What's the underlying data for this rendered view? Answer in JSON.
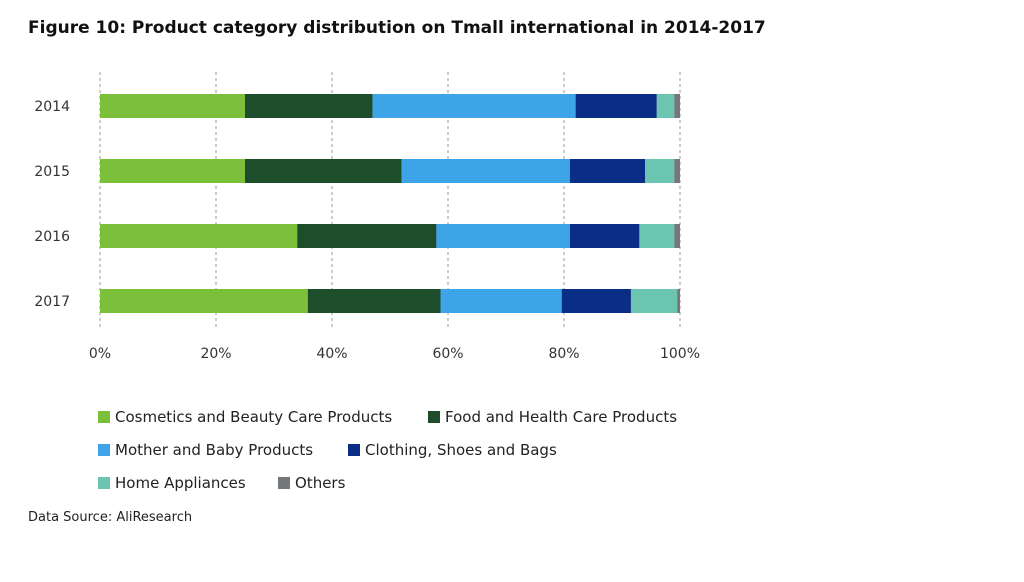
{
  "title": "Figure 10: Product category distribution on Tmall international in 2014-2017",
  "source": "Data Source: AliResearch",
  "chart_data": {
    "type": "bar",
    "orientation": "horizontal",
    "stacked": true,
    "percent": true,
    "categories": [
      "2014",
      "2015",
      "2016",
      "2017"
    ],
    "x_ticks": [
      "0%",
      "20%",
      "40%",
      "60%",
      "80%",
      "100%"
    ],
    "xlim": [
      0,
      100
    ],
    "grid": "vertical dashed",
    "legend_position": "bottom",
    "series": [
      {
        "name": "Cosmetics and Beauty Care Products",
        "color": "#7cbf3a",
        "values": [
          25,
          25,
          34,
          36
        ]
      },
      {
        "name": "Food and Health Care Products",
        "color": "#1e4d2b",
        "values": [
          22,
          27,
          24,
          23
        ]
      },
      {
        "name": "Mother and Baby Products",
        "color": "#3ea4e8",
        "values": [
          35,
          29,
          23,
          21
        ]
      },
      {
        "name": "Clothing, Shoes and Bags",
        "color": "#0a2e86",
        "values": [
          14,
          13,
          12,
          12
        ]
      },
      {
        "name": "Home Appliances",
        "color": "#6cc5b0",
        "values": [
          3,
          5,
          6,
          8
        ]
      },
      {
        "name": "Others",
        "color": "#75787b",
        "values": [
          1,
          1,
          1,
          0.5
        ]
      }
    ]
  }
}
